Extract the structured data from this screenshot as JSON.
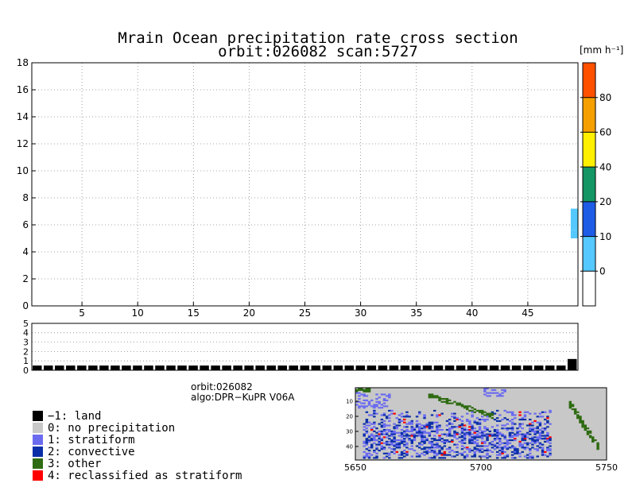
{
  "header": {
    "title_line1": "Mrain Ocean precipitation rate cross section",
    "title_line2": "orbit:026082    scan:5727",
    "units": "[mm h⁻¹]"
  },
  "info": {
    "orbit": "orbit:026082",
    "algo": "algo:DPR−KuPR V06A"
  },
  "legend": [
    {
      "code": "−1",
      "label": "−1: land",
      "color": "#000000"
    },
    {
      "code": "0",
      "label": "0: no precipitation",
      "color": "#c8c8c8"
    },
    {
      "code": "1",
      "label": "1: stratiform",
      "color": "#6b6bf0"
    },
    {
      "code": "2",
      "label": "2: convective",
      "color": "#0a2fa8"
    },
    {
      "code": "3",
      "label": "3: other",
      "color": "#2e6b12"
    },
    {
      "code": "4",
      "label": "4: reclassified as stratiform",
      "color": "#ff0000"
    }
  ],
  "chart_data": [
    {
      "type": "heatmap",
      "name": "precipitation cross section",
      "x_ticks": [
        5,
        10,
        15,
        20,
        25,
        30,
        35,
        40,
        45
      ],
      "y_ticks": [
        0,
        2,
        4,
        6,
        8,
        10,
        12,
        14,
        16,
        18
      ],
      "xlim": [
        0.5,
        49.5
      ],
      "ylim": [
        0,
        18
      ],
      "grid": true,
      "cells": [
        {
          "x": 49,
          "y0": 5.6,
          "y1": 7.2,
          "value": 5,
          "color": "#55c8ff"
        },
        {
          "x": 49,
          "y0": 5.0,
          "y1": 5.6,
          "value": 3,
          "color": "#55c8ff"
        }
      ],
      "colorbar": {
        "ticks": [
          0,
          10,
          20,
          40,
          60,
          80
        ],
        "bands": [
          "#ffffff",
          "#55c8ff",
          "#1e5ce6",
          "#149664",
          "#ffef00",
          "#f5a000",
          "#ff5000"
        ]
      }
    },
    {
      "type": "bar",
      "name": "precipitation type strip",
      "y_ticks": [
        0,
        1,
        2,
        3,
        4,
        5
      ],
      "ylim": [
        0,
        5
      ],
      "grid": true,
      "bins": 49,
      "values_note_free": true,
      "values": [
        0.5,
        0.5,
        0.5,
        0.5,
        0.5,
        0.5,
        0.5,
        0.5,
        0.5,
        0.5,
        0.5,
        0.5,
        0.5,
        0.5,
        0.5,
        0.5,
        0.5,
        0.5,
        0.5,
        0.5,
        0.5,
        0.5,
        0.5,
        0.5,
        0.5,
        0.5,
        0.5,
        0.5,
        0.5,
        0.5,
        0.5,
        0.5,
        0.5,
        0.5,
        0.5,
        0.5,
        0.5,
        0.5,
        0.5,
        0.5,
        0.5,
        0.5,
        0.5,
        0.5,
        0.5,
        0.5,
        0.5,
        0.5,
        1.2
      ]
    },
    {
      "type": "heatmap",
      "name": "precipitation type map",
      "x_ticks": [
        5650,
        5700,
        5750
      ],
      "y_ticks": [
        10,
        20,
        30,
        40
      ],
      "xlim": [
        5650,
        5750
      ],
      "ylim": [
        49,
        1
      ]
    }
  ]
}
